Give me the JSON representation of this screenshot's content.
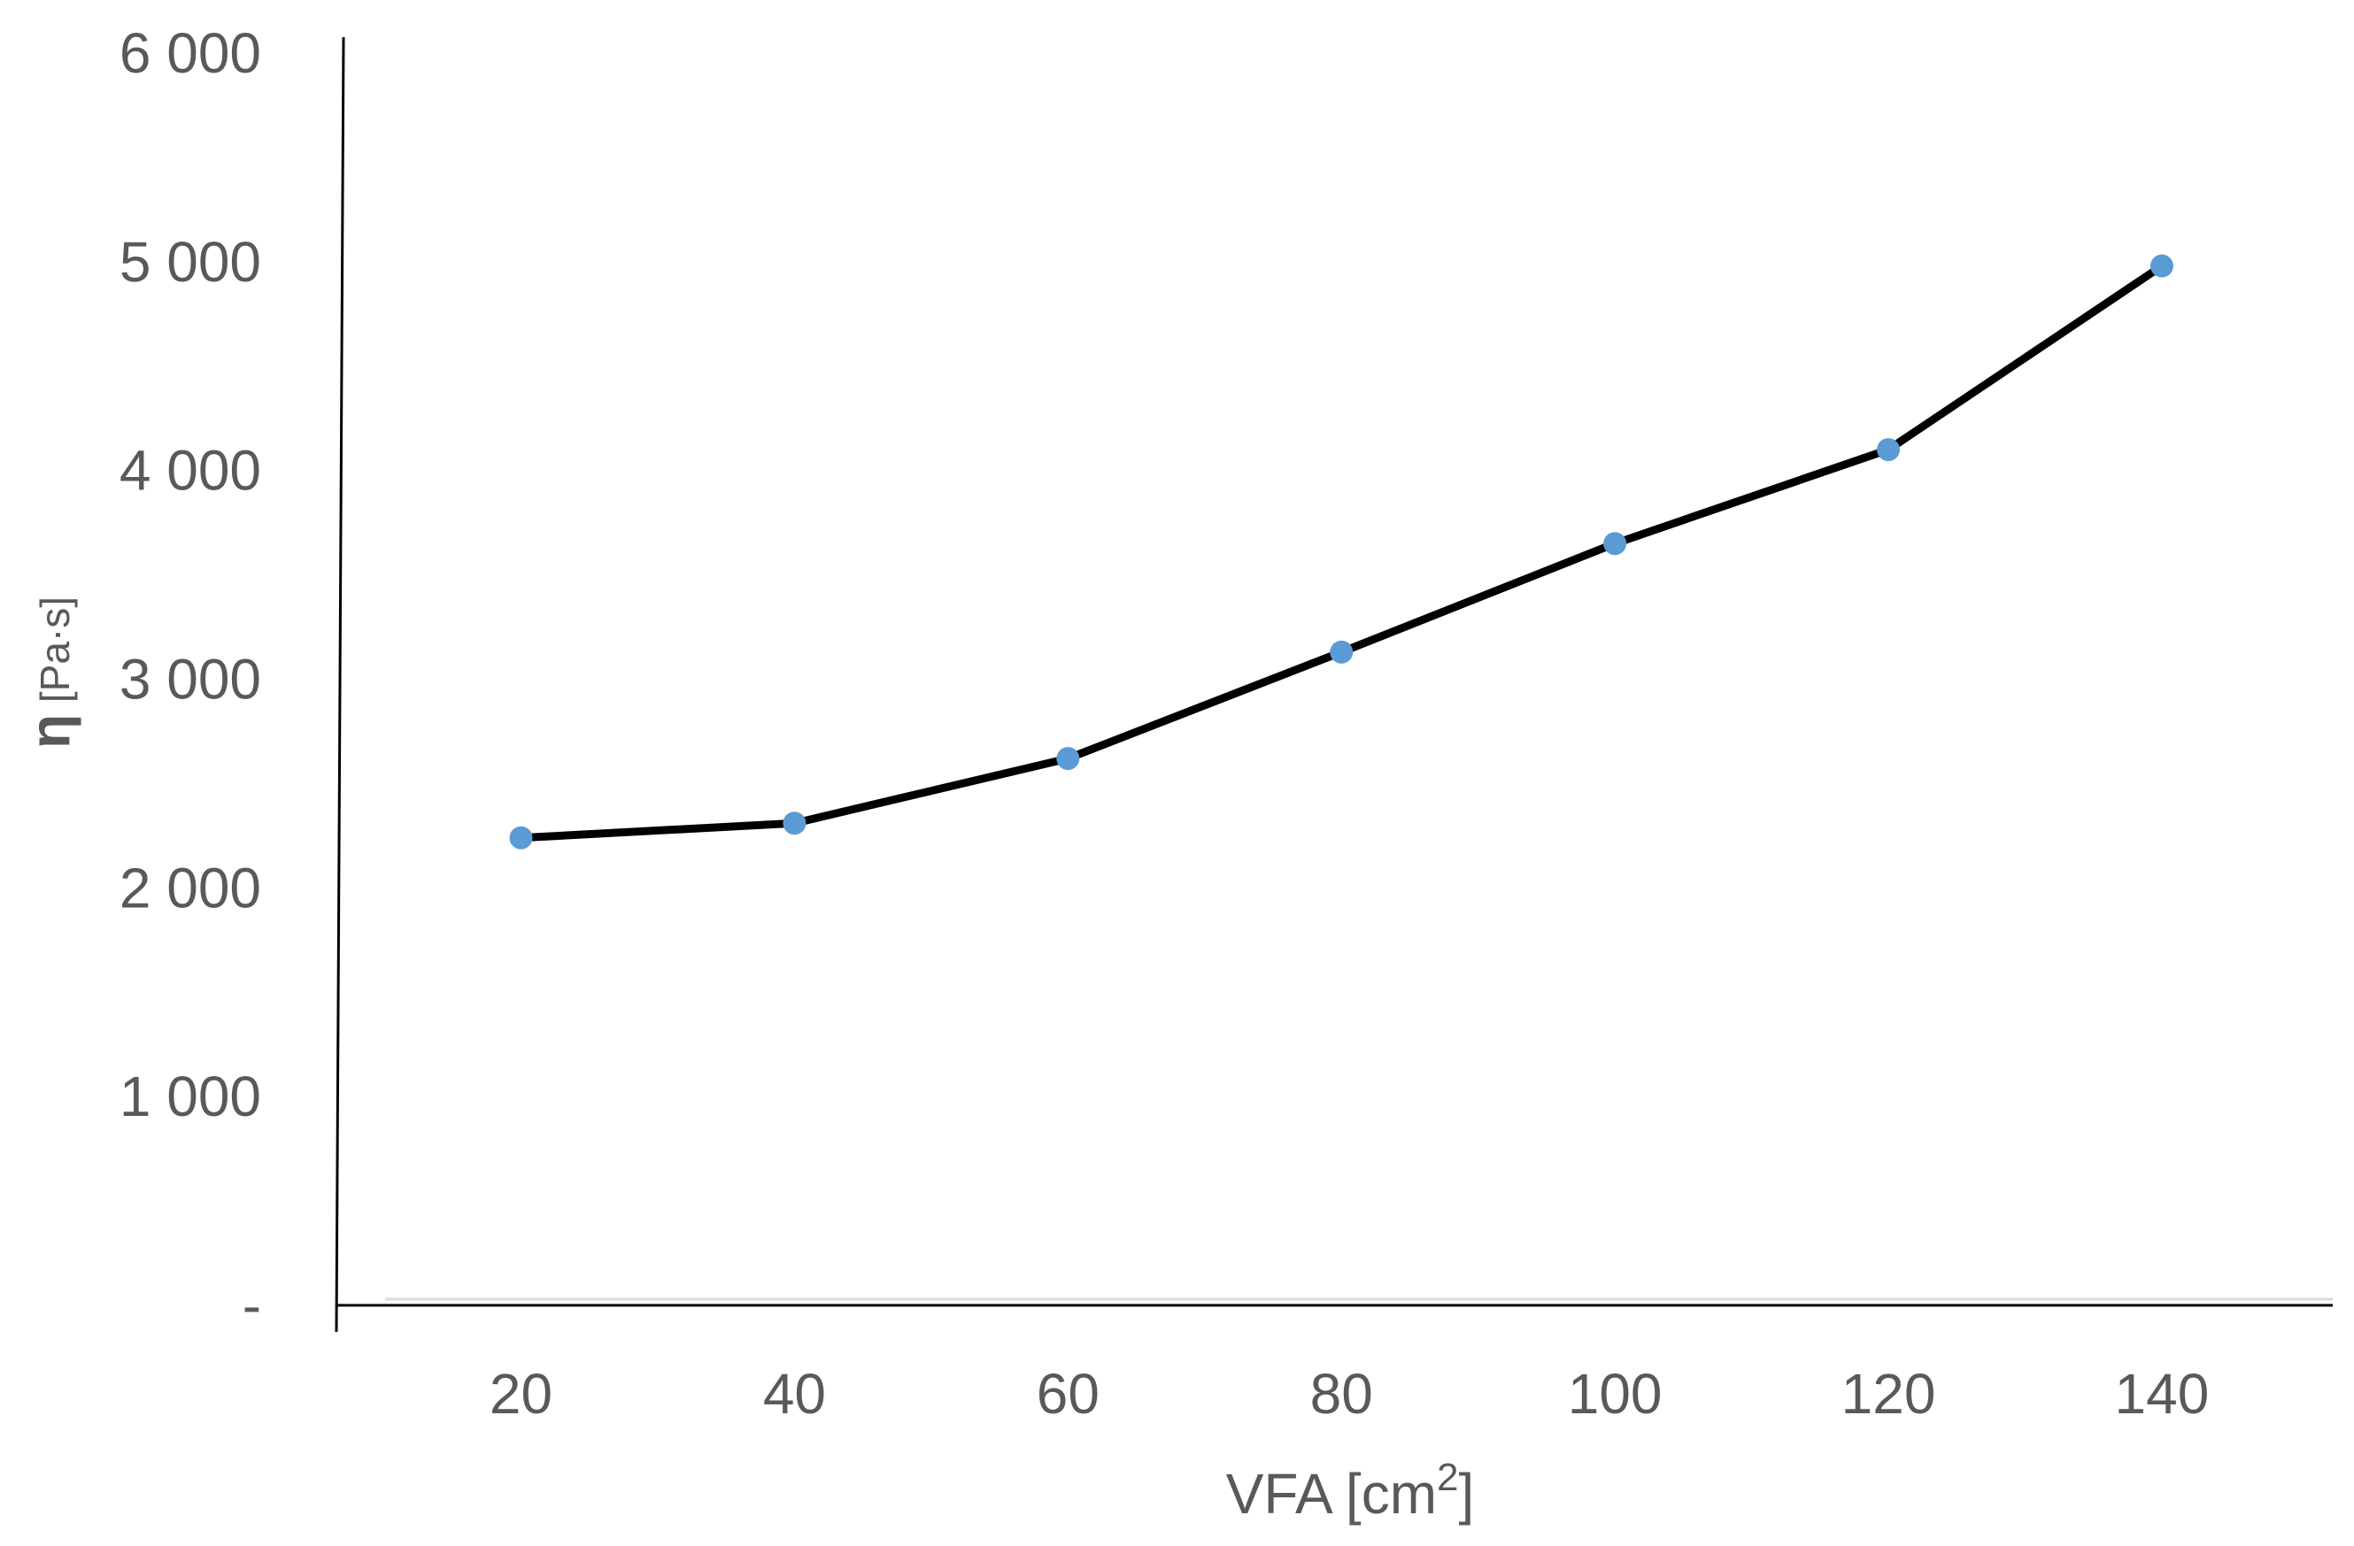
{
  "chart_data": {
    "type": "line",
    "title": "",
    "xlabel": "VFA  [cm",
    "xlabel_superscript": "2",
    "xlabel_suffix": "]",
    "ylabel_symbol": "η",
    "ylabel_unit": " [Pa·s]",
    "x": [
      20,
      40,
      60,
      80,
      100,
      120,
      140
    ],
    "series": [
      {
        "name": "η",
        "values": [
          2240,
          2310,
          2620,
          3130,
          3650,
          4100,
          4980
        ]
      }
    ],
    "xlim": [
      6.5,
      152.5
    ],
    "ylim": [
      0,
      6000
    ],
    "x_ticks": [
      20,
      40,
      60,
      80,
      100,
      120,
      140
    ],
    "x_tick_labels": [
      "20",
      "40",
      "60",
      "80",
      "100",
      "120",
      "140"
    ],
    "y_ticks": [
      0,
      1000,
      2000,
      3000,
      4000,
      5000,
      6000
    ],
    "y_tick_labels": [
      "-",
      "1 000",
      "2 000",
      "3 000",
      "4 000",
      "5 000",
      "6 000"
    ],
    "grid": false,
    "legend": "none",
    "line_color": "#000000",
    "marker_color": "#5b9bd5",
    "axis_color": "#000000",
    "text_color": "#595959"
  }
}
